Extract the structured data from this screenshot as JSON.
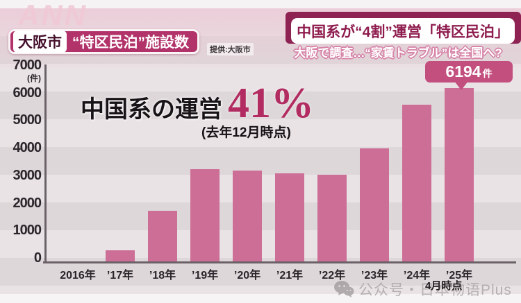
{
  "watermarks": {
    "broadcaster": "ANN",
    "wechat_label": "公众号・日本物语Plus"
  },
  "header": {
    "headline": "中国系が“4割”運営「特区民泊」",
    "subheadline": "大阪で調査…“家賃トラブル”は全国へ?",
    "location_badge": "大阪市",
    "title": "“特区民泊”施設数",
    "source": "提供:大阪市"
  },
  "annotation": {
    "label": "中国系の運営",
    "value": "41%",
    "note": "(去年12月時点)"
  },
  "callout": {
    "value": "6194",
    "unit": "件"
  },
  "x_footnote": "4月時点",
  "chart_data": {
    "type": "bar",
    "categories": [
      "2016年",
      "’17年",
      "’18年",
      "’19年",
      "’20年",
      "’21年",
      "’22年",
      "’23年",
      "’24年",
      "’25年"
    ],
    "values": [
      0,
      400,
      1800,
      3300,
      3250,
      3150,
      3100,
      4050,
      5600,
      6194
    ],
    "title": "大阪市 “特区民泊”施設数",
    "xlabel": "",
    "ylabel": "(件)",
    "ylim": [
      0,
      7000
    ],
    "yticks": [
      0,
      1000,
      2000,
      3000,
      4000,
      5000,
      6000,
      7000
    ],
    "grid": false,
    "legend": false,
    "bar_color": "#cd6e96",
    "annotations": [
      "6194件 (’25年4月時点)",
      "中国系の運営 41% (去年12月時点)"
    ]
  },
  "colors": {
    "bar": "#cd6e96",
    "callout_bg": "#c34f7f",
    "headline_text": "#8e1c4e",
    "ribbon": "#8e2253",
    "badge_bg": "#b2336a",
    "accent_value": "#b22c62",
    "axis": "#6a6267"
  }
}
